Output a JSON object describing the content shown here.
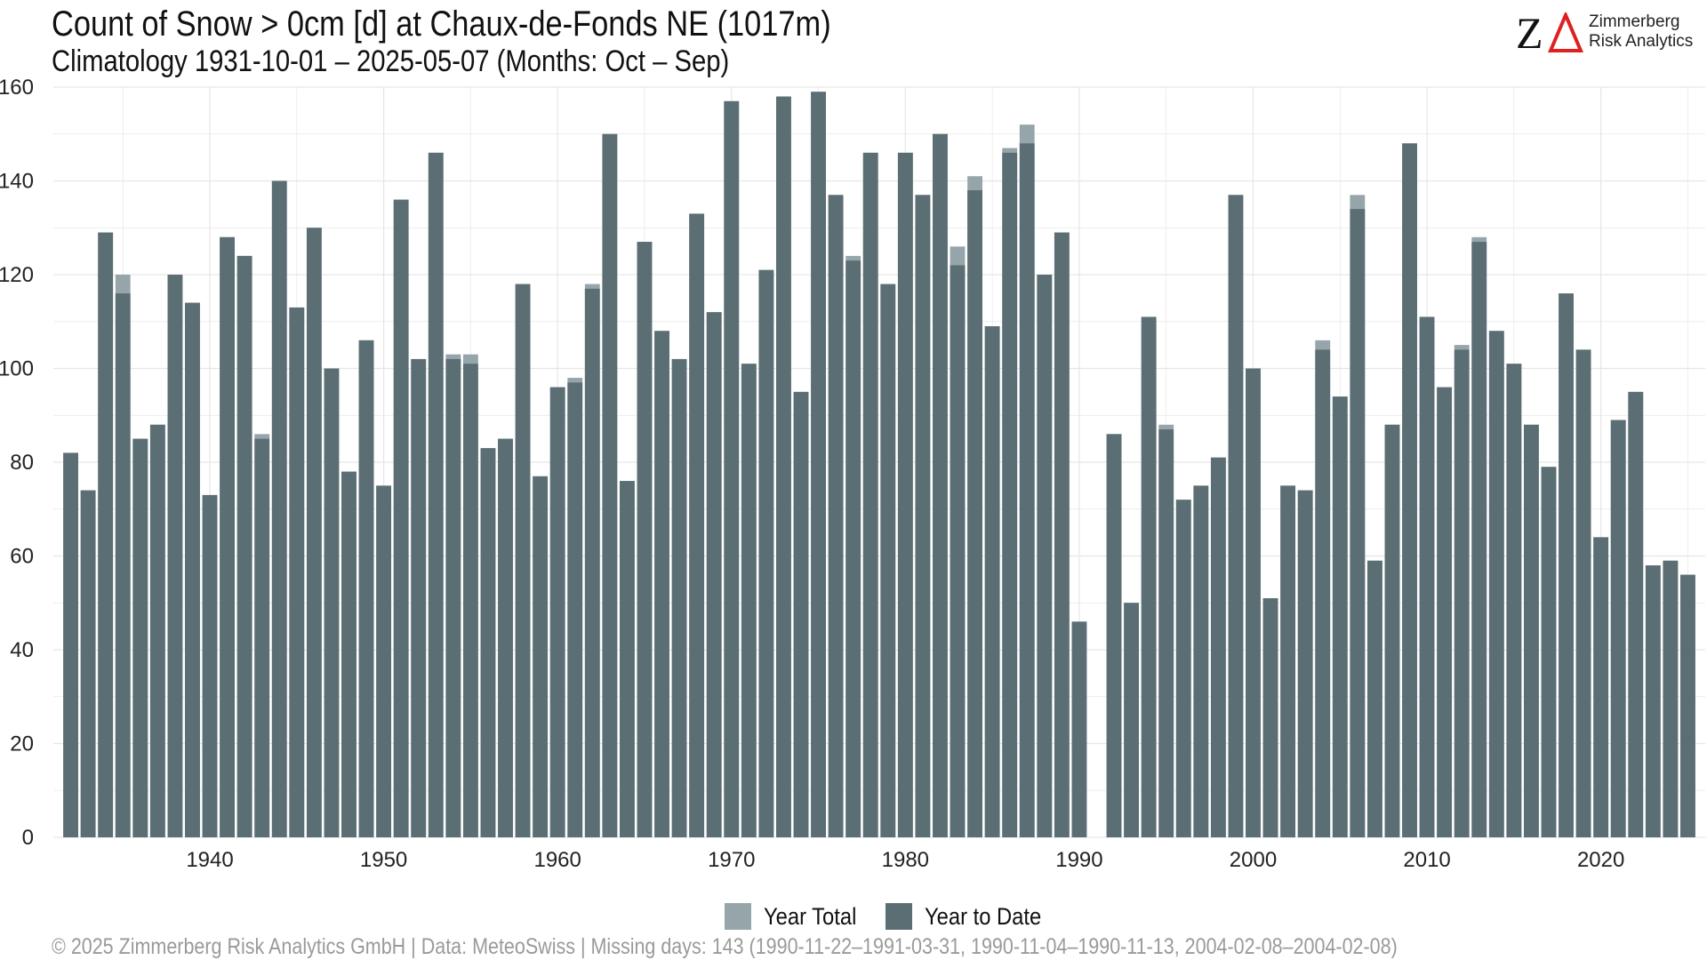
{
  "chart_data": {
    "type": "bar",
    "title": "Count of Snow > 0cm [d] at Chaux-de-Fonds  NE (1017m)",
    "subtitle": "Climatology 1931-10-01 – 2025-05-07 (Months: Oct – Sep)",
    "xlabel": "",
    "ylabel": "",
    "ylim": [
      0,
      160
    ],
    "xlim": [
      1931,
      2026
    ],
    "y_ticks": [
      0,
      20,
      40,
      60,
      80,
      100,
      120,
      140,
      160
    ],
    "x_ticks": [
      1940,
      1950,
      1960,
      1970,
      1980,
      1990,
      2000,
      2010,
      2020
    ],
    "grid": true,
    "legend_position": "bottom",
    "layering": "overlay",
    "x": [
      1932,
      1933,
      1934,
      1935,
      1936,
      1937,
      1938,
      1939,
      1940,
      1941,
      1942,
      1943,
      1944,
      1945,
      1946,
      1947,
      1948,
      1949,
      1950,
      1951,
      1952,
      1953,
      1954,
      1955,
      1956,
      1957,
      1958,
      1959,
      1960,
      1961,
      1962,
      1963,
      1964,
      1965,
      1966,
      1967,
      1968,
      1969,
      1970,
      1971,
      1972,
      1973,
      1974,
      1975,
      1976,
      1977,
      1978,
      1979,
      1980,
      1981,
      1982,
      1983,
      1984,
      1985,
      1986,
      1987,
      1988,
      1989,
      1990,
      1991,
      1992,
      1993,
      1994,
      1995,
      1996,
      1997,
      1998,
      1999,
      2000,
      2001,
      2002,
      2003,
      2004,
      2005,
      2006,
      2007,
      2008,
      2009,
      2010,
      2011,
      2012,
      2013,
      2014,
      2015,
      2016,
      2017,
      2018,
      2019,
      2020,
      2021,
      2022,
      2023,
      2024,
      2025
    ],
    "series": [
      {
        "name": "Year Total",
        "color": "#95a5aa",
        "values": [
          82,
          74,
          129,
          120,
          85,
          88,
          120,
          114,
          73,
          128,
          124,
          86,
          140,
          113,
          130,
          100,
          78,
          106,
          75,
          136,
          102,
          146,
          103,
          103,
          83,
          85,
          118,
          77,
          96,
          98,
          118,
          150,
          76,
          127,
          108,
          102,
          133,
          112,
          157,
          101,
          121,
          158,
          95,
          159,
          137,
          124,
          146,
          118,
          146,
          137,
          150,
          126,
          141,
          109,
          147,
          152,
          120,
          129,
          46,
          null,
          86,
          50,
          111,
          88,
          72,
          75,
          81,
          137,
          100,
          51,
          75,
          74,
          106,
          94,
          137,
          59,
          88,
          148,
          111,
          96,
          105,
          128,
          108,
          101,
          88,
          79,
          116,
          104,
          64,
          89,
          95,
          58,
          59,
          56
        ]
      },
      {
        "name": "Year to Date",
        "color": "#5b6e73",
        "values": [
          82,
          74,
          129,
          116,
          85,
          88,
          120,
          114,
          73,
          128,
          124,
          85,
          140,
          113,
          130,
          100,
          78,
          106,
          75,
          136,
          102,
          146,
          102,
          101,
          83,
          85,
          118,
          77,
          96,
          97,
          117,
          150,
          76,
          127,
          108,
          102,
          133,
          112,
          157,
          101,
          121,
          158,
          95,
          159,
          137,
          123,
          146,
          118,
          146,
          137,
          150,
          122,
          138,
          109,
          146,
          148,
          120,
          129,
          46,
          null,
          86,
          50,
          111,
          87,
          72,
          75,
          81,
          137,
          100,
          51,
          75,
          74,
          104,
          94,
          134,
          59,
          88,
          148,
          111,
          96,
          104,
          127,
          108,
          101,
          88,
          79,
          116,
          104,
          64,
          89,
          95,
          58,
          59,
          56
        ]
      }
    ],
    "caption": "©  2025 Zimmerberg Risk Analytics GmbH | Data: MeteoSwiss | Missing days: 143 (1990-11-22–1991-03-31, 1990-11-04–1990-11-13, 2004-02-08–2004-02-08)"
  },
  "brand": {
    "mark": "Z",
    "name_line1": "Zimmerberg",
    "name_line2": "Risk Analytics",
    "mark_color": "#e02020",
    "logo_icon": "delta-triangle-icon"
  },
  "colors": {
    "background": "#ffffff",
    "grid": "#e6e6e6"
  }
}
